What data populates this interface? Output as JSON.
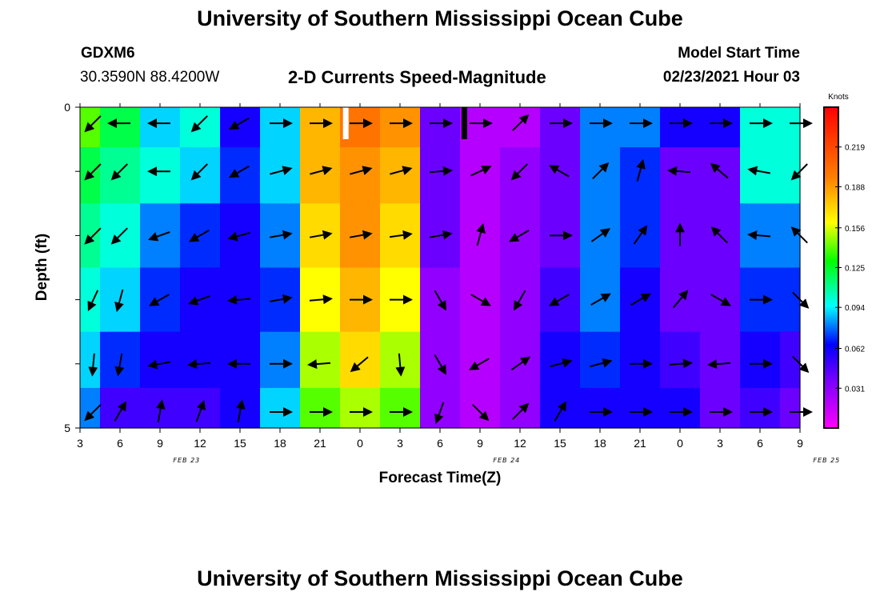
{
  "header": {
    "title": "University of Southern Mississippi Ocean Cube",
    "station_id": "GDXM6",
    "coordinates": "30.3590N 88.4200W",
    "plot_title": "2-D Currents Speed-Magnitude",
    "model_start_label": "Model Start Time",
    "model_start_value": "02/23/2021 Hour 03"
  },
  "footer": {
    "title": "University of Southern Mississippi Ocean Cube"
  },
  "chart_data": {
    "type": "heatmap",
    "title": "2-D Currents Speed-Magnitude",
    "xlabel": "Forecast Time(Z)",
    "ylabel": "Depth (ft)",
    "x_range_hours": [
      3,
      57
    ],
    "y_range_ft": [
      0,
      5
    ],
    "x_ticks": [
      {
        "h": 3,
        "label": "3"
      },
      {
        "h": 6,
        "label": "6"
      },
      {
        "h": 9,
        "label": "9"
      },
      {
        "h": 12,
        "label": "12"
      },
      {
        "h": 15,
        "label": "15"
      },
      {
        "h": 18,
        "label": "18"
      },
      {
        "h": 21,
        "label": "21"
      },
      {
        "h": 24,
        "label": "0"
      },
      {
        "h": 27,
        "label": "3"
      },
      {
        "h": 30,
        "label": "6"
      },
      {
        "h": 33,
        "label": "9"
      },
      {
        "h": 36,
        "label": "12"
      },
      {
        "h": 39,
        "label": "15"
      },
      {
        "h": 42,
        "label": "18"
      },
      {
        "h": 45,
        "label": "21"
      },
      {
        "h": 48,
        "label": "0"
      },
      {
        "h": 51,
        "label": "3"
      },
      {
        "h": 54,
        "label": "6"
      },
      {
        "h": 57,
        "label": "9"
      }
    ],
    "y_ticks": [
      {
        "ft": 0,
        "label": "0"
      },
      {
        "ft": 5,
        "label": "5"
      }
    ],
    "date_labels": [
      {
        "h": 11,
        "label": "FEB 23"
      },
      {
        "h": 35,
        "label": "FEB 24"
      },
      {
        "h": 59,
        "label": "FEB 25"
      }
    ],
    "colorbar": {
      "unit": "Knots",
      "min": 0,
      "max": 0.25,
      "ticks": [
        0.219,
        0.188,
        0.156,
        0.125,
        0.094,
        0.062,
        0.031
      ],
      "tick_labels": [
        "0.219",
        "0.188",
        "0.156",
        "0.125",
        "0.094",
        "0.062",
        "0.031"
      ]
    },
    "markers": [
      {
        "hour": 22.9,
        "color": "#ffffff"
      },
      {
        "hour": 31.8,
        "color": "#000000"
      }
    ],
    "depth_rows_ft": [
      0.25,
      1.0,
      2.0,
      3.0,
      4.0,
      4.75
    ],
    "time_hours": [
      3,
      6,
      9,
      12,
      15,
      18,
      21,
      24,
      27,
      30,
      33,
      36,
      39,
      42,
      45,
      48,
      51,
      54,
      57
    ],
    "speed_knots": [
      [
        0.14,
        0.12,
        0.09,
        0.1,
        0.06,
        0.09,
        0.18,
        0.2,
        0.19,
        0.04,
        0.02,
        0.02,
        0.04,
        0.08,
        0.08,
        0.06,
        0.06,
        0.1,
        0.1
      ],
      [
        0.12,
        0.11,
        0.1,
        0.09,
        0.07,
        0.09,
        0.18,
        0.19,
        0.18,
        0.04,
        0.02,
        0.03,
        0.04,
        0.08,
        0.07,
        0.04,
        0.04,
        0.1,
        0.1
      ],
      [
        0.11,
        0.1,
        0.08,
        0.07,
        0.06,
        0.08,
        0.17,
        0.19,
        0.17,
        0.04,
        0.02,
        0.03,
        0.04,
        0.08,
        0.07,
        0.04,
        0.04,
        0.08,
        0.08
      ],
      [
        0.1,
        0.09,
        0.07,
        0.06,
        0.06,
        0.07,
        0.16,
        0.18,
        0.16,
        0.03,
        0.02,
        0.03,
        0.05,
        0.08,
        0.06,
        0.04,
        0.04,
        0.07,
        0.07
      ],
      [
        0.09,
        0.07,
        0.06,
        0.06,
        0.06,
        0.08,
        0.15,
        0.17,
        0.15,
        0.03,
        0.02,
        0.03,
        0.06,
        0.07,
        0.06,
        0.05,
        0.04,
        0.06,
        0.05
      ],
      [
        0.08,
        0.05,
        0.05,
        0.05,
        0.06,
        0.09,
        0.14,
        0.15,
        0.14,
        0.03,
        0.02,
        0.03,
        0.06,
        0.06,
        0.06,
        0.06,
        0.04,
        0.05,
        0.04
      ]
    ],
    "arrow_rows_ft": [
      0.25,
      1.0,
      2.0,
      3.0,
      4.0,
      4.75
    ],
    "arrow_time_hours": [
      4,
      6,
      9,
      12,
      15,
      18,
      21,
      24,
      27,
      30,
      33,
      36,
      39,
      42,
      45,
      48,
      51,
      54,
      57
    ],
    "arrow_directions_deg": [
      [
        225,
        180,
        180,
        225,
        210,
        0,
        0,
        0,
        0,
        0,
        0,
        45,
        0,
        0,
        0,
        0,
        0,
        0,
        0
      ],
      [
        225,
        225,
        180,
        225,
        210,
        15,
        15,
        15,
        15,
        5,
        25,
        225,
        150,
        45,
        75,
        175,
        140,
        170,
        225
      ],
      [
        225,
        225,
        200,
        210,
        195,
        10,
        10,
        10,
        8,
        10,
        75,
        210,
        0,
        35,
        55,
        90,
        135,
        175,
        135
      ],
      [
        245,
        255,
        210,
        200,
        185,
        10,
        5,
        0,
        0,
        300,
        330,
        240,
        210,
        30,
        30,
        50,
        330,
        0,
        315
      ],
      [
        265,
        260,
        190,
        185,
        180,
        0,
        185,
        220,
        275,
        300,
        210,
        35,
        15,
        15,
        0,
        5,
        185,
        0,
        315
      ],
      [
        225,
        60,
        80,
        70,
        80,
        0,
        0,
        0,
        0,
        250,
        315,
        45,
        60,
        0,
        0,
        0,
        0,
        0,
        0
      ]
    ]
  }
}
